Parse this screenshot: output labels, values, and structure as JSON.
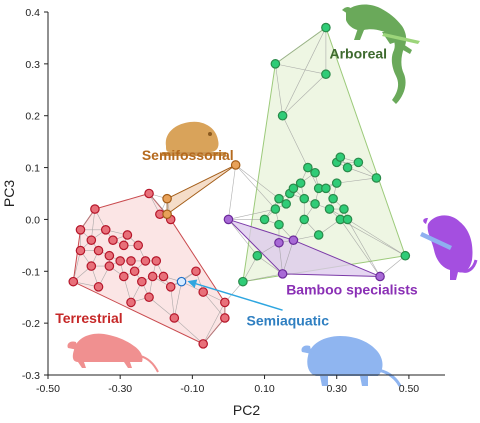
{
  "chart_data": {
    "type": "scatter",
    "xlabel": "PC2",
    "ylabel": "PC3",
    "xlim": [
      -0.5,
      0.6
    ],
    "ylim": [
      -0.3,
      0.4
    ],
    "xticks": [
      "-0.50",
      "-0.30",
      "-0.10",
      "0.10",
      "0.30",
      "0.50"
    ],
    "yticks": [
      "-0.3",
      "-0.2",
      "-0.1",
      "0.0",
      "0.1",
      "0.2",
      "0.3",
      "0.4"
    ],
    "xtick_values": [
      -0.5,
      -0.3,
      -0.1,
      0.1,
      0.3,
      0.5
    ],
    "ytick_values": [
      -0.3,
      -0.2,
      -0.1,
      0.0,
      0.1,
      0.2,
      0.3,
      0.4
    ],
    "grid": false,
    "groups": [
      {
        "name": "Arboreal",
        "color": "#2fcc77",
        "edge": "#2a8a4a",
        "hull_fill": "#e8f3d9",
        "hull_stroke": "#9cca7a",
        "label_color": "#3e6a2e",
        "label_pos": [
          0.28,
          0.31
        ],
        "points": [
          [
            0.13,
            0.3
          ],
          [
            0.27,
            0.37
          ],
          [
            0.27,
            0.28
          ],
          [
            0.15,
            0.2
          ],
          [
            0.3,
            0.11
          ],
          [
            0.31,
            0.12
          ],
          [
            0.33,
            0.1
          ],
          [
            0.36,
            0.11
          ],
          [
            0.22,
            0.1
          ],
          [
            0.24,
            0.09
          ],
          [
            0.41,
            0.08
          ],
          [
            0.2,
            0.07
          ],
          [
            0.25,
            0.06
          ],
          [
            0.27,
            0.06
          ],
          [
            0.3,
            0.07
          ],
          [
            0.17,
            0.05
          ],
          [
            0.18,
            0.06
          ],
          [
            0.21,
            0.04
          ],
          [
            0.29,
            0.04
          ],
          [
            0.14,
            0.04
          ],
          [
            0.16,
            0.03
          ],
          [
            0.24,
            0.03
          ],
          [
            0.13,
            0.02
          ],
          [
            0.1,
            0.0
          ],
          [
            0.21,
            0.0
          ],
          [
            0.28,
            0.02
          ],
          [
            0.32,
            0.02
          ],
          [
            0.14,
            -0.01
          ],
          [
            0.31,
            0.0
          ],
          [
            0.33,
            0.0
          ],
          [
            0.25,
            -0.03
          ],
          [
            0.08,
            -0.07
          ],
          [
            0.49,
            -0.07
          ],
          [
            0.04,
            -0.12
          ]
        ]
      },
      {
        "name": "Terrestrial",
        "color": "#e8707a",
        "edge": "#b5162a",
        "hull_fill": "#f9dcdc",
        "hull_stroke": "#c94a4e",
        "label_color": "#c62828",
        "label_pos": [
          -0.48,
          -0.2
        ],
        "points": [
          [
            -0.37,
            0.02
          ],
          [
            -0.22,
            0.05
          ],
          [
            -0.19,
            0.01
          ],
          [
            -0.16,
            0.0
          ],
          [
            -0.41,
            -0.02
          ],
          [
            -0.34,
            -0.02
          ],
          [
            -0.28,
            -0.03
          ],
          [
            -0.38,
            -0.04
          ],
          [
            -0.32,
            -0.04
          ],
          [
            -0.29,
            -0.05
          ],
          [
            -0.41,
            -0.06
          ],
          [
            -0.36,
            -0.06
          ],
          [
            -0.25,
            -0.05
          ],
          [
            -0.33,
            -0.07
          ],
          [
            -0.3,
            -0.08
          ],
          [
            -0.27,
            -0.08
          ],
          [
            -0.23,
            -0.08
          ],
          [
            -0.2,
            -0.08
          ],
          [
            -0.38,
            -0.09
          ],
          [
            -0.33,
            -0.09
          ],
          [
            -0.26,
            -0.1
          ],
          [
            -0.29,
            -0.11
          ],
          [
            -0.21,
            -0.11
          ],
          [
            -0.18,
            -0.11
          ],
          [
            -0.09,
            -0.1
          ],
          [
            -0.24,
            -0.12
          ],
          [
            -0.16,
            -0.13
          ],
          [
            -0.36,
            -0.13
          ],
          [
            -0.43,
            -0.12
          ],
          [
            -0.22,
            -0.15
          ],
          [
            -0.07,
            -0.14
          ],
          [
            -0.27,
            -0.16
          ],
          [
            -0.01,
            -0.16
          ],
          [
            -0.15,
            -0.19
          ],
          [
            -0.01,
            -0.19
          ],
          [
            -0.07,
            -0.24
          ]
        ]
      },
      {
        "name": "Semifossorial",
        "color": "#e8a25a",
        "edge": "#a35d18",
        "hull_fill": "#f1d2b6",
        "hull_stroke": "#a35d18",
        "label_color": "#b56a1e",
        "label_pos": [
          -0.24,
          0.115
        ],
        "points": [
          [
            0.02,
            0.105
          ],
          [
            -0.17,
            0.04
          ],
          [
            -0.17,
            0.01
          ]
        ]
      },
      {
        "name": "Bamboo specialists",
        "color": "#a86ad6",
        "edge": "#6b2a9a",
        "hull_fill": "#dcc8ec",
        "hull_stroke": "#7b3aa8",
        "label_color": "#8a2fb5",
        "label_pos": [
          0.16,
          -0.145
        ],
        "points": [
          [
            0.0,
            0.0
          ],
          [
            0.14,
            -0.045
          ],
          [
            0.18,
            -0.04
          ],
          [
            0.15,
            -0.105
          ],
          [
            0.42,
            -0.11
          ]
        ]
      },
      {
        "name": "Semiaquatic",
        "color": "#d8ecff",
        "edge": "#1f6fc8",
        "hull_fill": "none",
        "hull_stroke": "none",
        "label_color": "#2f7fc1",
        "label_pos": [
          0.05,
          -0.205
        ],
        "points": [
          [
            -0.13,
            -0.12
          ]
        ]
      }
    ],
    "annotations": [
      {
        "text": "Semiaquatic",
        "arrow_from": [
          0.15,
          -0.175
        ],
        "arrow_to": [
          -0.12,
          -0.12
        ],
        "color": "#2ea6e0"
      }
    ],
    "icons": [
      {
        "name": "lizard-silhouette-icon",
        "group": "Arboreal",
        "color": "#6aa95a"
      },
      {
        "name": "mole-rat-silhouette-icon",
        "group": "Semifossorial",
        "color": "#d9a35a"
      },
      {
        "name": "bamboo-rat-silhouette-icon",
        "group": "Bamboo specialists",
        "color": "#a44fe0"
      },
      {
        "name": "rat-silhouette-icon",
        "group": "Terrestrial",
        "color": "#f09090"
      },
      {
        "name": "water-rat-silhouette-icon",
        "group": "Semiaquatic",
        "color": "#8fb5f0"
      }
    ]
  }
}
